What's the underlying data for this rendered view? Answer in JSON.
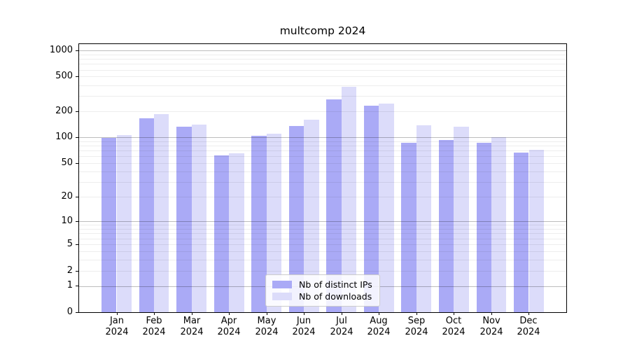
{
  "figure_title": "multcomp 2024",
  "chart_data": {
    "type": "bar",
    "title": "multcomp 2024",
    "categories": [
      "Jan",
      "Feb",
      "Mar",
      "Apr",
      "May",
      "Jun",
      "Jul",
      "Aug",
      "Sep",
      "Oct",
      "Nov",
      "Dec"
    ],
    "x_tick_year": "2024",
    "series": [
      {
        "name": "Nb of distinct IPs",
        "color": "#aaaaf6",
        "values": [
          98,
          166,
          132,
          62,
          104,
          136,
          276,
          232,
          87,
          93,
          87,
          67
        ]
      },
      {
        "name": "Nb of downloads",
        "color": "#dcdcfa",
        "values": [
          107,
          185,
          140,
          65,
          111,
          160,
          380,
          247,
          138,
          132,
          100,
          72
        ]
      }
    ],
    "yscale": "log1p",
    "ylim": [
      0,
      1180
    ],
    "yticks": [
      0,
      1,
      2,
      5,
      10,
      20,
      50,
      100,
      200,
      500,
      1000
    ],
    "grid": true,
    "grid_major_at": [
      1,
      10,
      100,
      1000
    ],
    "legend_position": "lower center",
    "xlabel": "",
    "ylabel": ""
  },
  "legend": {
    "items": [
      {
        "label": "Nb of distinct IPs",
        "color": "#aaaaf6"
      },
      {
        "label": "Nb of downloads",
        "color": "#dcdcfa"
      }
    ]
  },
  "colors": {
    "distinct_ips_bar": "#aaaaf6",
    "downloads_bar": "#dcdcfa",
    "spine": "#000000"
  }
}
